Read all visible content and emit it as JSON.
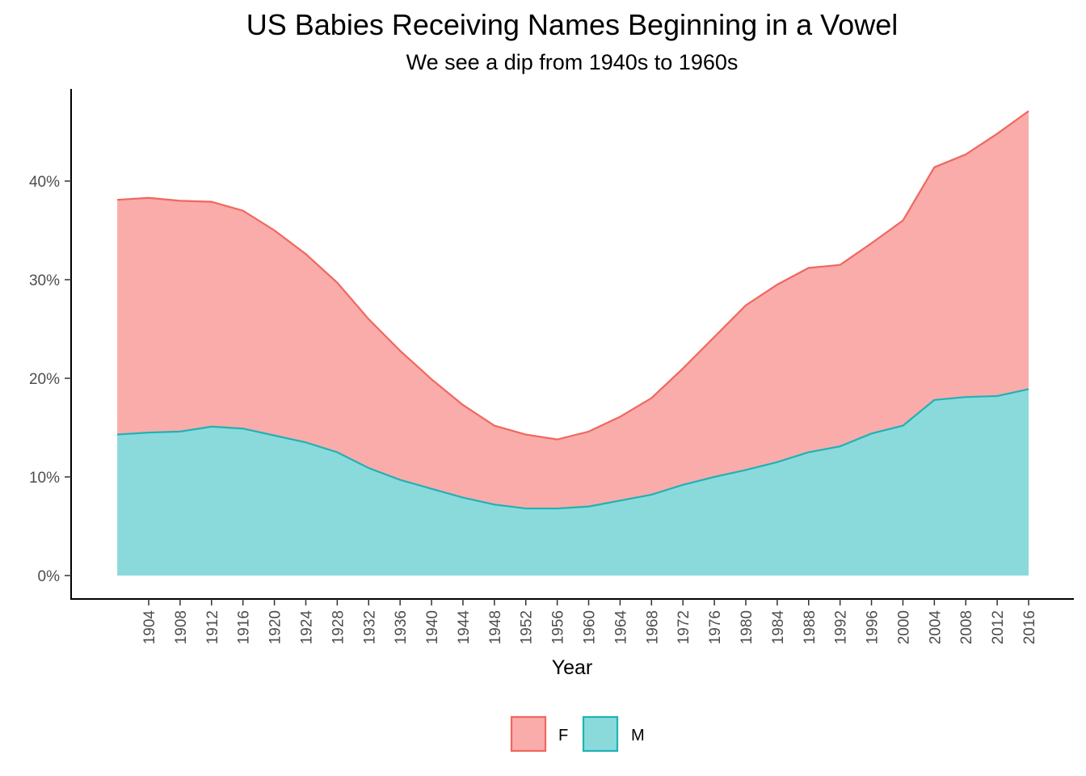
{
  "title": "US Babies Receiving Names Beginning in a Vowel",
  "subtitle": "We see a dip from 1940s to 1960s",
  "chart_data": {
    "type": "area",
    "stacked": true,
    "title": "US Babies Receiving Names Beginning in a Vowel",
    "subtitle": "We see a dip from 1940s to 1960s",
    "xlabel": "Year",
    "ylabel": "",
    "x": [
      1900,
      1904,
      1908,
      1912,
      1916,
      1920,
      1924,
      1928,
      1932,
      1936,
      1940,
      1944,
      1948,
      1952,
      1956,
      1960,
      1964,
      1968,
      1972,
      1976,
      1980,
      1984,
      1988,
      1992,
      1996,
      2000,
      2004,
      2008,
      2012,
      2016
    ],
    "xlim": [
      1896,
      2020
    ],
    "ylim": [
      0,
      0.47
    ],
    "yticks": [
      0,
      0.1,
      0.2,
      0.3,
      0.4
    ],
    "ytick_labels": [
      "0%",
      "10%",
      "20%",
      "30%",
      "40%"
    ],
    "xticks": [
      1904,
      1908,
      1912,
      1916,
      1920,
      1924,
      1928,
      1932,
      1936,
      1940,
      1944,
      1948,
      1952,
      1956,
      1960,
      1964,
      1968,
      1972,
      1976,
      1980,
      1984,
      1988,
      1992,
      1996,
      2000,
      2004,
      2008,
      2012,
      2016
    ],
    "xtick_labels": [
      "1904",
      "1908",
      "1912",
      "1916",
      "1920",
      "1924",
      "1928",
      "1932",
      "1936",
      "1940",
      "1944",
      "1948",
      "1952",
      "1956",
      "1960",
      "1964",
      "1968",
      "1972",
      "1976",
      "1980",
      "1984",
      "1988",
      "1992",
      "1996",
      "2000",
      "2004",
      "2008",
      "2012",
      "2016"
    ],
    "series": [
      {
        "name": "M",
        "line_color": "#20B2B5",
        "fill_color": "#8ADADC",
        "values": [
          0.143,
          0.145,
          0.146,
          0.151,
          0.149,
          0.142,
          0.135,
          0.125,
          0.109,
          0.097,
          0.088,
          0.079,
          0.072,
          0.068,
          0.068,
          0.07,
          0.076,
          0.082,
          0.092,
          0.1,
          0.107,
          0.115,
          0.125,
          0.131,
          0.144,
          0.152,
          0.178,
          0.181,
          0.182,
          0.189
        ]
      },
      {
        "name": "F",
        "line_color": "#F0675F",
        "fill_color": "#F9ACAA",
        "values": [
          0.238,
          0.238,
          0.234,
          0.228,
          0.221,
          0.208,
          0.191,
          0.172,
          0.151,
          0.131,
          0.111,
          0.094,
          0.08,
          0.075,
          0.07,
          0.076,
          0.085,
          0.098,
          0.118,
          0.142,
          0.167,
          0.18,
          0.187,
          0.184,
          0.193,
          0.208,
          0.236,
          0.246,
          0.266,
          0.282
        ]
      }
    ],
    "legend": {
      "position": "bottom",
      "entries": [
        "F",
        "M"
      ]
    },
    "grid": false
  }
}
